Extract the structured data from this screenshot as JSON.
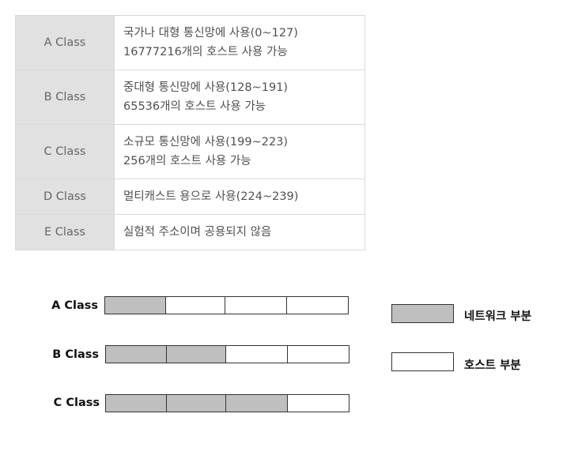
{
  "table": {
    "rows": [
      {
        "name": "A Class",
        "lines": [
          "국가나 대형 통신망에 사용(0~127)",
          "16777216개의 호스트 사용 가능"
        ]
      },
      {
        "name": "B Class",
        "lines": [
          "중대형 통신망에 사용(128~191)",
          "65536개의 호스트 사용 가능"
        ]
      },
      {
        "name": "C Class",
        "lines": [
          "소규모 통신망에 사용(199~223)",
          "256개의 호스트 사용 가능"
        ]
      },
      {
        "name": "D Class",
        "lines": [
          "멀티캐스트 용으로 사용(224~239)"
        ]
      },
      {
        "name": "E Class",
        "lines": [
          "실험적 주소이며 공용되지 않음"
        ]
      }
    ]
  },
  "diagram": {
    "rows": [
      {
        "label": "A Class",
        "segments": [
          "network",
          "host",
          "host",
          "host"
        ]
      },
      {
        "label": "B Class",
        "segments": [
          "network",
          "network",
          "host",
          "host"
        ]
      },
      {
        "label": "C Class",
        "segments": [
          "network",
          "network",
          "network",
          "host"
        ]
      }
    ],
    "legend": {
      "network": "네트워크 부분",
      "host": "호스트 부분"
    }
  },
  "colors": {
    "network": "#bfbfbf",
    "host": "#ffffff",
    "table_header_bg": "#e1e1e1",
    "border": "#d9d9d9"
  }
}
